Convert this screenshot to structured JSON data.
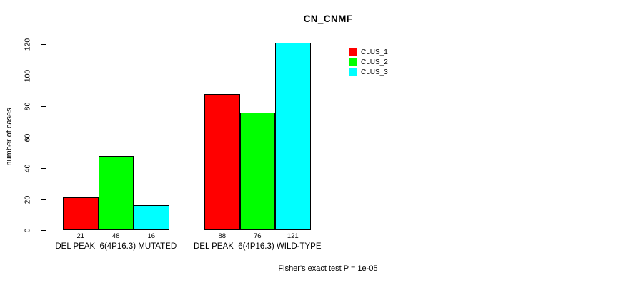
{
  "title": "CN_CNMF",
  "footer": "Fisher's exact test P = 1e-05",
  "colors": {
    "background": "#FFFFFF",
    "axis": "#000000",
    "bar_border": "#000000",
    "clus_1": "#FF0000",
    "clus_2": "#00FF00",
    "clus_3": "#00FFFF"
  },
  "chart_data": {
    "type": "bar",
    "title": "CN_CNMF",
    "xlabel": "",
    "ylabel": "number of cases",
    "ylim": [
      0,
      120
    ],
    "yticks": [
      0,
      20,
      40,
      60,
      80,
      100,
      120
    ],
    "grid": false,
    "legend_position": "top-right",
    "categories": [
      "DEL PEAK  6(4P16.3) MUTATED",
      "DEL PEAK  6(4P16.3) WILD-TYPE"
    ],
    "series": [
      {
        "name": "CLUS_1",
        "color": "#FF0000",
        "values": [
          21,
          88
        ]
      },
      {
        "name": "CLUS_2",
        "color": "#00FF00",
        "values": [
          48,
          76
        ]
      },
      {
        "name": "CLUS_3",
        "color": "#00FFFF",
        "values": [
          16,
          121
        ]
      }
    ],
    "bar_value_labels": [
      [
        21,
        48,
        16
      ],
      [
        88,
        76,
        121
      ]
    ],
    "annotation": "Fisher's exact test P = 1e-05"
  }
}
